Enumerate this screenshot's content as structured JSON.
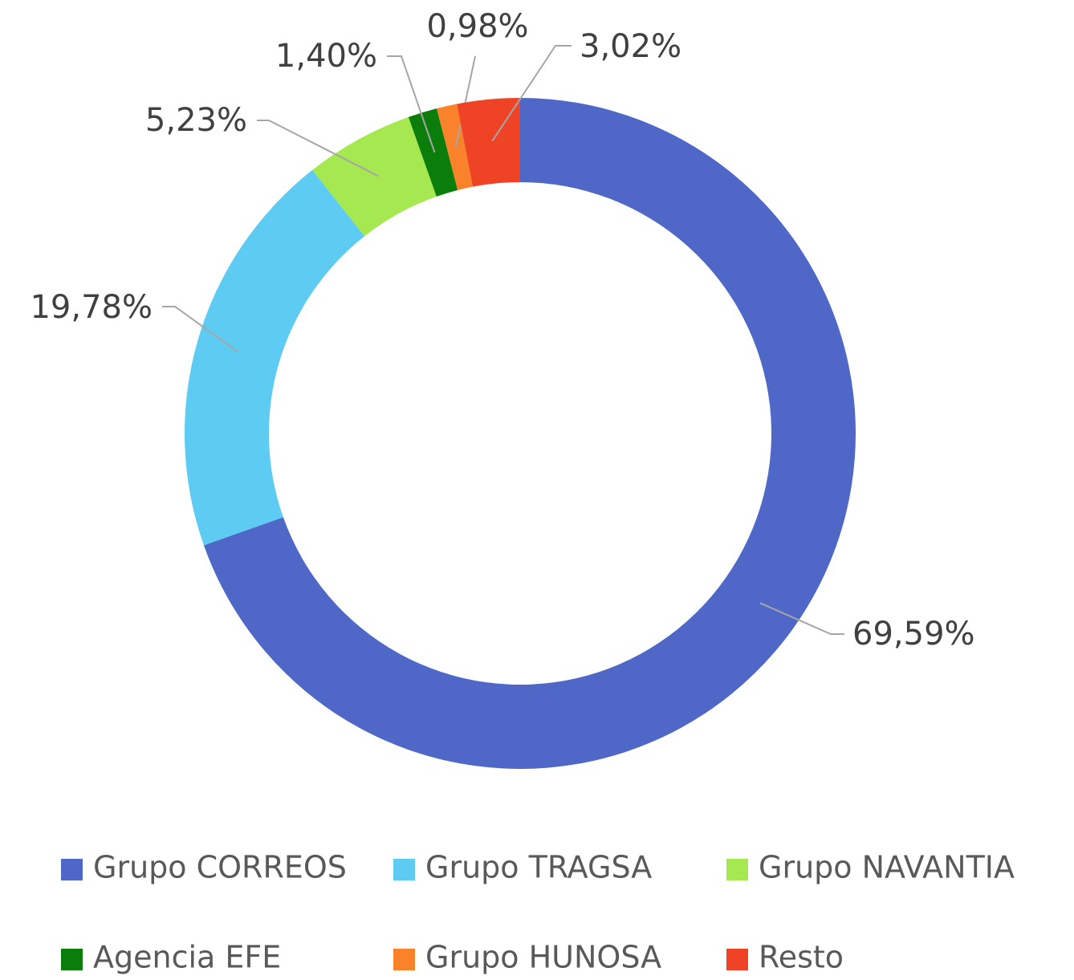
{
  "chart_data": {
    "type": "donut",
    "categories": [
      "Grupo CORREOS",
      "Grupo TRAGSA",
      "Grupo NAVANTIA",
      "Agencia EFE",
      "Grupo HUNOSA",
      "Resto"
    ],
    "values": [
      69.59,
      19.78,
      5.23,
      1.4,
      0.98,
      3.02
    ],
    "value_labels": [
      "69,59%",
      "19,78%",
      "5,23%",
      "1,40%",
      "0,98%",
      "3,02%"
    ],
    "colors": [
      "#4f68c8",
      "#5ecbf2",
      "#a6e84f",
      "#0a7d0a",
      "#f9822a",
      "#ef4326"
    ],
    "legend": "bottom"
  }
}
